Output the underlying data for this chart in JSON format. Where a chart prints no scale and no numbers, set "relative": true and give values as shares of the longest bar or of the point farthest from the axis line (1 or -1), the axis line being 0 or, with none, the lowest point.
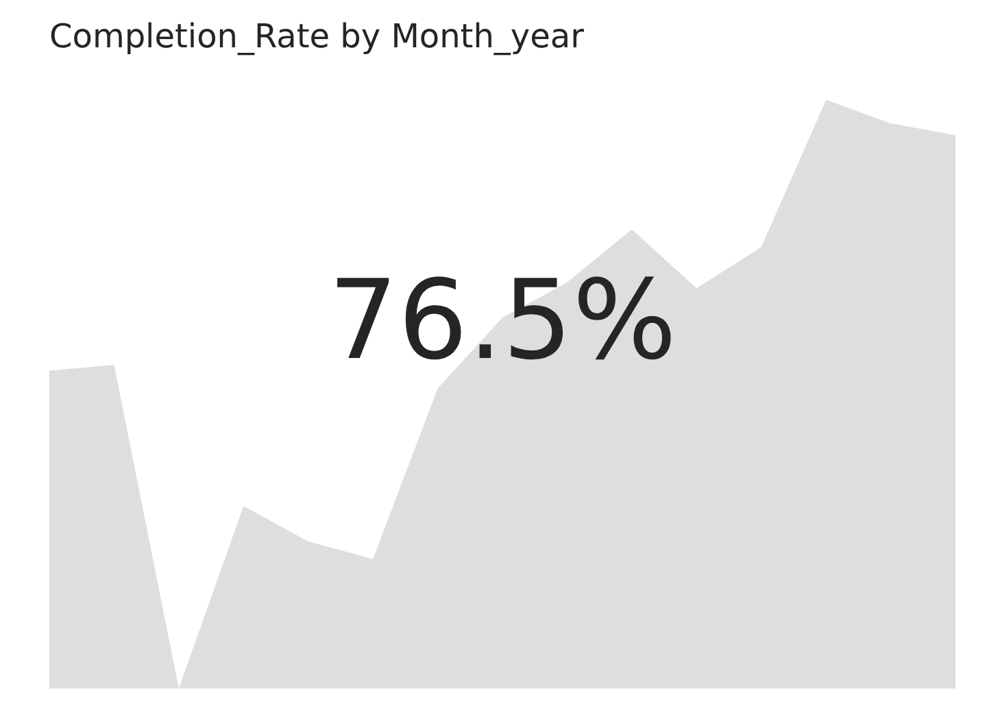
{
  "chart_data": {
    "type": "area",
    "title": "Completion_Rate by Month_year",
    "relative": true,
    "categories": [
      null,
      null,
      null,
      null,
      null,
      null,
      null,
      null,
      null,
      null,
      null,
      null,
      null,
      null,
      null
    ],
    "series": [
      {
        "color": "#dedede",
        "values": [
          0.54,
          0.55,
          0,
          0.31,
          0.25,
          0.22,
          0.51,
          0.63,
          0.69,
          0.78,
          0.68,
          0.75,
          1,
          0.96,
          0.94
        ]
      }
    ],
    "annotations": [
      "76.5%"
    ],
    "legend": false
  }
}
